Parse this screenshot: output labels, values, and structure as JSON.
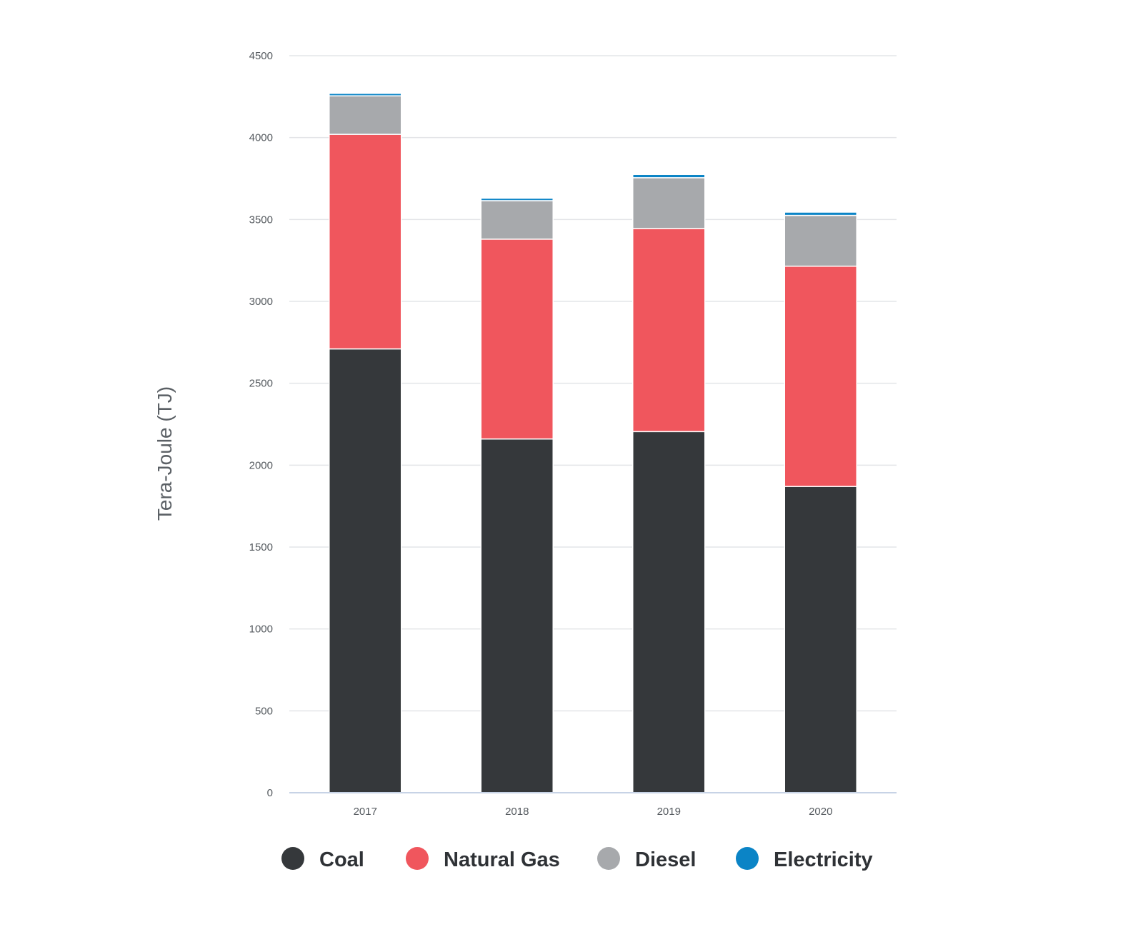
{
  "chart_data": {
    "type": "bar",
    "stacked": true,
    "categories": [
      "2017",
      "2018",
      "2019",
      "2020"
    ],
    "ylabel": "Tera-Joule (TJ)",
    "xlabel": "",
    "ylim": [
      0,
      4500
    ],
    "yticks": [
      0,
      500,
      1000,
      1500,
      2000,
      2500,
      3000,
      3500,
      4000,
      4500
    ],
    "grid": true,
    "legend_position": "bottom",
    "series": [
      {
        "name": "Coal",
        "color": "#35383b",
        "values": [
          2710,
          2160,
          2205,
          1870
        ]
      },
      {
        "name": "Natural Gas",
        "color": "#f0565d",
        "values": [
          1310,
          1220,
          1240,
          1345
        ]
      },
      {
        "name": "Diesel",
        "color": "#a7a9ac",
        "values": [
          235,
          235,
          310,
          310
        ]
      },
      {
        "name": "Electricity",
        "color": "#0b84c6",
        "values": [
          15,
          15,
          20,
          20
        ]
      }
    ]
  }
}
